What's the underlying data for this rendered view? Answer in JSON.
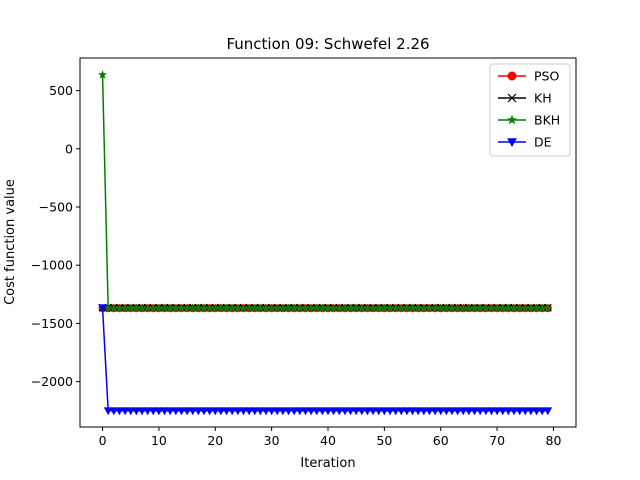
{
  "chart_data": {
    "type": "line",
    "title": "Function 09: Schwefel 2.26",
    "xlabel": "Iteration",
    "ylabel": "Cost function value",
    "xlim": [
      -4,
      84
    ],
    "ylim": [
      -2390,
      780
    ],
    "xticks": [
      0,
      10,
      20,
      30,
      40,
      50,
      60,
      70,
      80
    ],
    "yticks": [
      500,
      0,
      -500,
      -1000,
      -1500,
      -2000
    ],
    "ytick_labels": [
      "500",
      "0",
      "−500",
      "−1000",
      "−1500",
      "−2000"
    ],
    "grid": false,
    "legend_position": "top-right",
    "series": [
      {
        "name": "PSO",
        "color": "#ff0000",
        "marker": "circle",
        "x_start": 0,
        "x_end": 79,
        "values_head": [
          -1370
        ],
        "steady_value": -1370
      },
      {
        "name": "KH",
        "color": "#000000",
        "marker": "x",
        "x_start": 0,
        "x_end": 79,
        "values_head": [
          -1365
        ],
        "steady_value": -1365
      },
      {
        "name": "BKH",
        "color": "#008000",
        "marker": "star",
        "x_start": 0,
        "x_end": 79,
        "values_head": [
          635,
          -1368
        ],
        "steady_value": -1368
      },
      {
        "name": "DE",
        "color": "#0000ff",
        "marker": "triangle-down",
        "x_start": 0,
        "x_end": 79,
        "values_head": [
          -1365,
          -2250
        ],
        "steady_value": -2250
      }
    ]
  }
}
